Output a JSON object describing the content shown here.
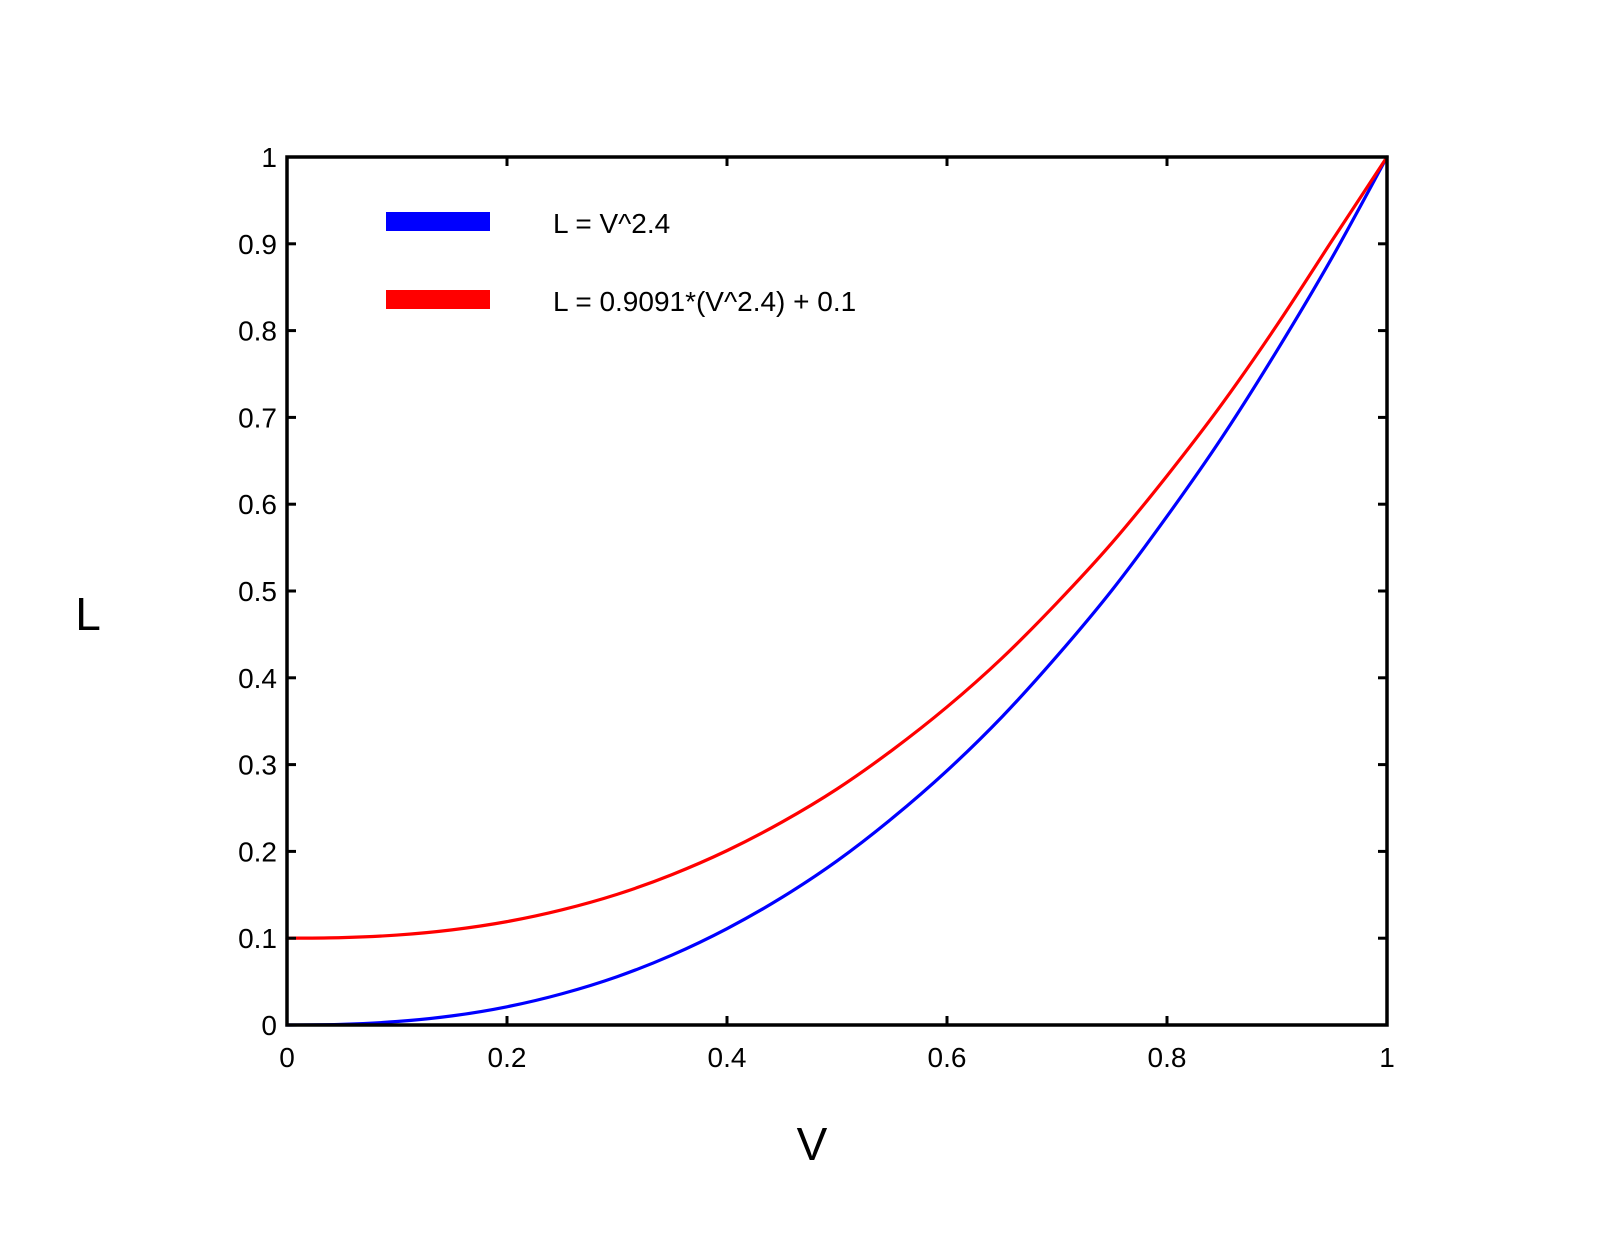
{
  "chart_data": {
    "type": "line",
    "title": "",
    "xlabel": "V",
    "ylabel": "L",
    "xlim": [
      0,
      1
    ],
    "ylim": [
      0,
      1
    ],
    "x_ticks": [
      "0",
      "0.2",
      "0.4",
      "0.6",
      "0.8",
      "1"
    ],
    "y_ticks": [
      "0",
      "0.1",
      "0.2",
      "0.3",
      "0.4",
      "0.5",
      "0.6",
      "0.7",
      "0.8",
      "0.9",
      "1"
    ],
    "grid": false,
    "legend_position": "top-left",
    "x": [
      0,
      0.05,
      0.1,
      0.15,
      0.2,
      0.25,
      0.3,
      0.35,
      0.4,
      0.45,
      0.5,
      0.55,
      0.6,
      0.65,
      0.7,
      0.75,
      0.8,
      0.85,
      0.9,
      0.95,
      1
    ],
    "series": [
      {
        "name": "L = V^2.4",
        "color": "#0000ff",
        "values": [
          0,
          0.0008,
          0.004,
          0.0105,
          0.021,
          0.036,
          0.0556,
          0.0806,
          0.111,
          0.147,
          0.189,
          0.238,
          0.293,
          0.355,
          0.425,
          0.501,
          0.586,
          0.677,
          0.777,
          0.884,
          1
        ]
      },
      {
        "name": "L = 0.9091*(V^2.4) + 0.1",
        "color": "#ff0000",
        "values": [
          0.1,
          0.1007,
          0.1036,
          0.1096,
          0.1191,
          0.1327,
          0.1505,
          0.1733,
          0.2009,
          0.2338,
          0.2719,
          0.3165,
          0.3664,
          0.4227,
          0.4864,
          0.5555,
          0.6327,
          0.7155,
          0.8064,
          0.9036,
          1
        ]
      }
    ]
  }
}
